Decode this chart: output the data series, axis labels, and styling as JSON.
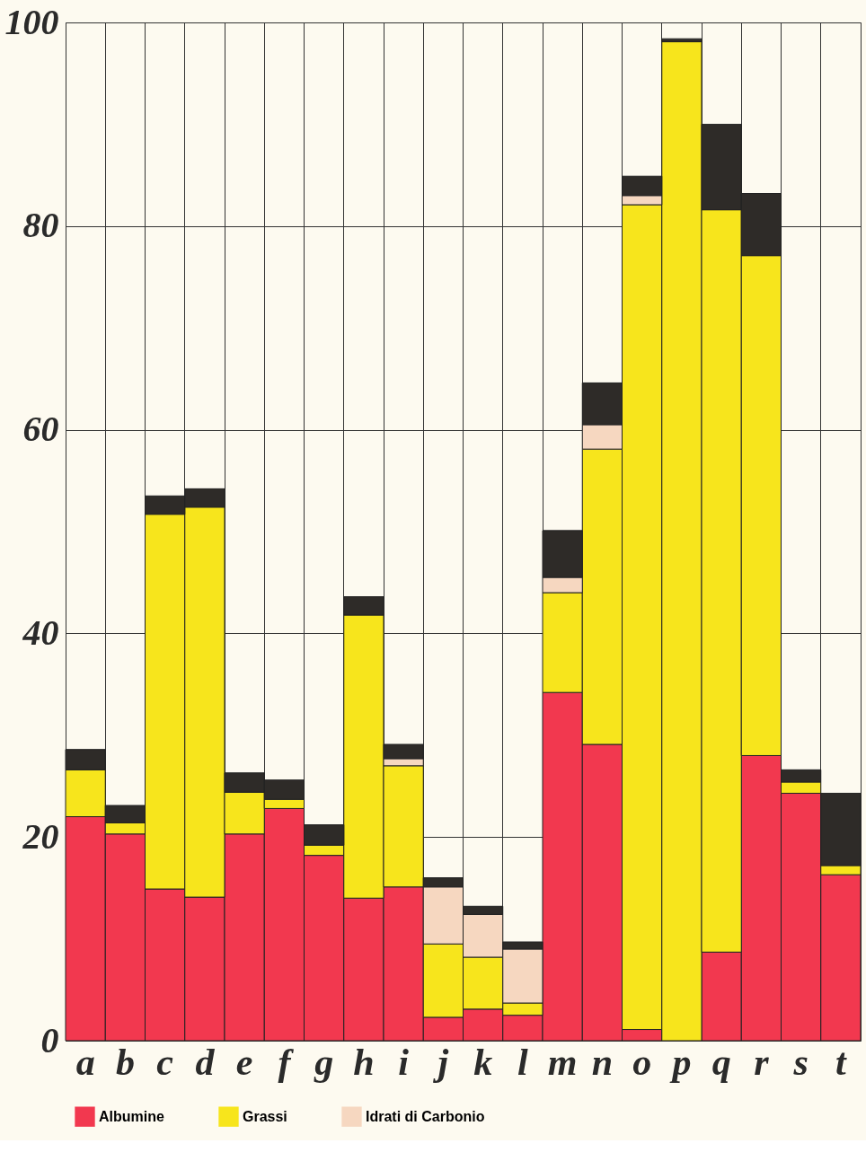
{
  "chart_data": {
    "type": "bar",
    "stacked": true,
    "categories": [
      "a",
      "b",
      "c",
      "d",
      "e",
      "f",
      "g",
      "h",
      "i",
      "j",
      "k",
      "l",
      "m",
      "n",
      "o",
      "p",
      "q",
      "r",
      "s",
      "t"
    ],
    "series": [
      {
        "name": "Albumine",
        "color": "#f2384f",
        "values": [
          22.0,
          20.3,
          14.9,
          14.1,
          20.3,
          22.8,
          18.2,
          14.0,
          15.1,
          2.3,
          3.1,
          2.5,
          34.2,
          29.1,
          1.1,
          0,
          8.7,
          28.0,
          24.3,
          16.3
        ]
      },
      {
        "name": "Grassi",
        "color": "#f7e51c",
        "values": [
          4.6,
          1.1,
          36.8,
          38.3,
          4.1,
          0.9,
          1.0,
          27.8,
          11.9,
          7.2,
          5.1,
          1.2,
          9.8,
          29.0,
          81.0,
          98.1,
          72.9,
          49.1,
          1.1,
          0.9
        ]
      },
      {
        "name": "Idrati di Carbonio",
        "color": "#f6d7c0",
        "values": [
          0,
          0,
          0,
          0,
          0,
          0,
          0,
          0,
          0.7,
          5.6,
          4.2,
          5.3,
          1.5,
          2.4,
          0.9,
          0,
          0,
          0,
          0,
          0
        ]
      },
      {
        "color": "#2e2b28",
        "values": [
          2.0,
          1.7,
          1.8,
          1.8,
          1.9,
          1.9,
          2.0,
          1.8,
          1.4,
          0.9,
          0.8,
          0.7,
          4.6,
          4.1,
          1.9,
          0.3,
          8.4,
          6.1,
          1.2,
          7.1
        ]
      }
    ],
    "ylim": [
      0,
      100
    ],
    "yticks": [
      0,
      20,
      40,
      60,
      80,
      100
    ],
    "grid": true,
    "legend": "bottom"
  }
}
